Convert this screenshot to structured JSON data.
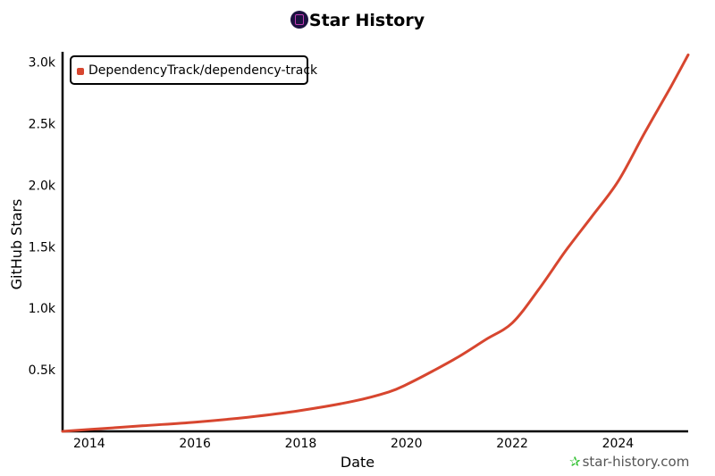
{
  "title": "Star History",
  "watermark": "star-history.com",
  "colors": {
    "series": "#d7462f",
    "logo_bg": "#1b1140",
    "watermark_icon": "#2bbf2b"
  },
  "chart_data": {
    "type": "line",
    "title": "Star History",
    "xlabel": "Date",
    "ylabel": "GitHub Stars",
    "x_tick_labels": [
      "2014",
      "2016",
      "2018",
      "2020",
      "2022",
      "2024"
    ],
    "y_tick_labels": [
      "0.5k",
      "1.0k",
      "1.5k",
      "2.0k",
      "2.5k",
      "3.0k"
    ],
    "xlim": [
      "2013-07-01",
      "2025-05-01"
    ],
    "ylim": [
      0,
      3070
    ],
    "grid": false,
    "legend_position": "top-left",
    "series": [
      {
        "name": "DependencyTrack/dependency-track",
        "color": "#d7462f",
        "points": [
          [
            "2013-07-01",
            0
          ],
          [
            "2014-01-01",
            15
          ],
          [
            "2015-01-01",
            45
          ],
          [
            "2016-01-01",
            75
          ],
          [
            "2017-01-01",
            115
          ],
          [
            "2018-01-01",
            170
          ],
          [
            "2019-01-01",
            245
          ],
          [
            "2019-09-01",
            320
          ],
          [
            "2020-01-01",
            380
          ],
          [
            "2020-07-01",
            490
          ],
          [
            "2021-01-01",
            610
          ],
          [
            "2021-07-01",
            745
          ],
          [
            "2022-01-01",
            880
          ],
          [
            "2022-07-01",
            1150
          ],
          [
            "2023-01-01",
            1460
          ],
          [
            "2023-07-01",
            1740
          ],
          [
            "2024-01-01",
            2030
          ],
          [
            "2024-07-01",
            2420
          ],
          [
            "2025-01-01",
            2800
          ],
          [
            "2025-05-01",
            3060
          ]
        ]
      }
    ]
  }
}
